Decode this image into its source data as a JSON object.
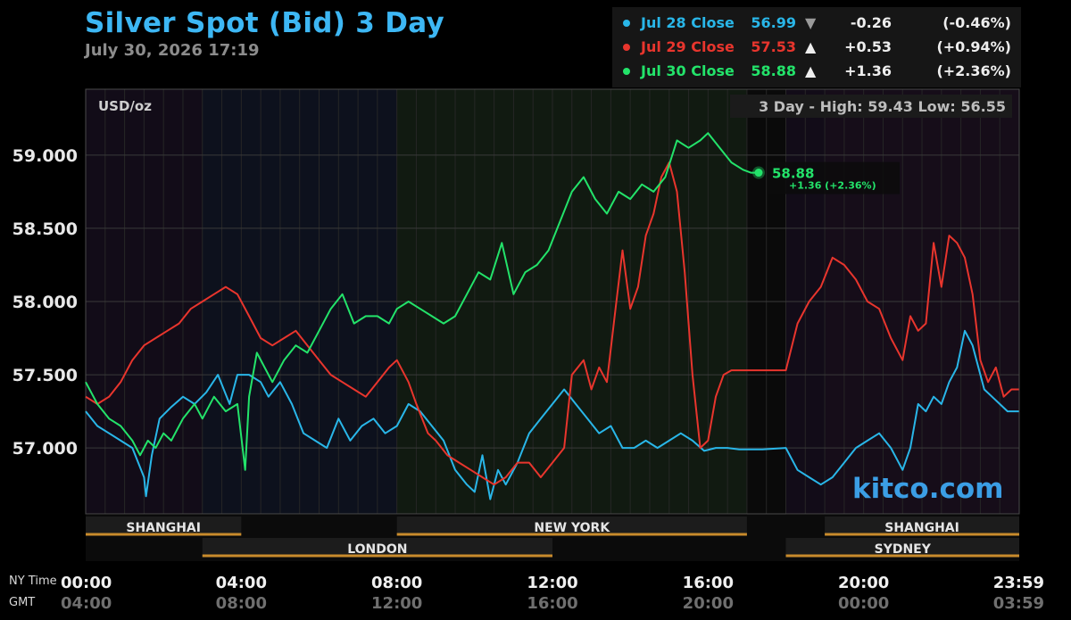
{
  "title": "Silver Spot (Bid) 3 Day",
  "subtitle": "July 30, 2026 17:19",
  "watermark": "kitco.com",
  "legend": [
    {
      "name": "Jul 28 Close",
      "value": "56.99",
      "arrow": "▼",
      "change": "-0.26",
      "pct": "(-0.46%)",
      "color": "#29b6e8"
    },
    {
      "name": "Jul 29 Close",
      "value": "57.53",
      "arrow": "▲",
      "change": "+0.53",
      "pct": "(+0.94%)",
      "color": "#e8352d"
    },
    {
      "name": "Jul 30 Close",
      "value": "58.88",
      "arrow": "▲",
      "change": "+1.36",
      "pct": "(+2.36%)",
      "color": "#23e36a"
    }
  ],
  "chart_data": {
    "type": "line",
    "unit_label": "USD/oz",
    "range_label": "3 Day - High: 59.43  Low: 56.55",
    "ylim": [
      56.55,
      59.45
    ],
    "yticks": [
      57.0,
      57.5,
      58.0,
      58.5,
      59.0
    ],
    "ytick_labels": [
      "57.000",
      "57.500",
      "58.000",
      "58.500",
      "59.000"
    ],
    "xlim": [
      0,
      24
    ],
    "xticks": [
      0,
      4,
      8,
      12,
      16,
      20,
      24
    ],
    "xtick_labels_ny": [
      "00:00",
      "04:00",
      "08:00",
      "12:00",
      "16:00",
      "20:00",
      "23:59"
    ],
    "xtick_labels_gmt": [
      "04:00",
      "08:00",
      "12:00",
      "16:00",
      "20:00",
      "00:00",
      "03:59"
    ],
    "xrow_label_ny": "NY Time",
    "xrow_label_gmt": "GMT",
    "current_label": "58.88",
    "current_change_label": "+1.36 (+2.36%)",
    "current_point": {
      "x": 17.3,
      "y": 58.88
    },
    "sessions": [
      {
        "name": "SHANGHAI",
        "start": 0,
        "end": 4
      },
      {
        "name": "LONDON",
        "start": 3,
        "end": 12
      },
      {
        "name": "NEW YORK",
        "start": 8,
        "end": 17
      },
      {
        "name": "SHANGHAI",
        "start": 19,
        "end": 24
      },
      {
        "name": "SYDNEY",
        "start": 18,
        "end": 24
      }
    ],
    "closed_period": [
      17,
      18
    ],
    "series": [
      {
        "name": "Jul 28 Close",
        "color": "#29b6e8",
        "x": [
          0,
          0.3,
          0.6,
          0.9,
          1.2,
          1.5,
          1.55,
          1.7,
          1.9,
          2.2,
          2.5,
          2.8,
          3.1,
          3.4,
          3.7,
          3.9,
          4.2,
          4.5,
          4.7,
          5.0,
          5.3,
          5.6,
          5.9,
          6.2,
          6.5,
          6.8,
          7.1,
          7.4,
          7.7,
          8.0,
          8.3,
          8.6,
          8.9,
          9.2,
          9.5,
          9.8,
          10.0,
          10.2,
          10.4,
          10.6,
          10.8,
          11.1,
          11.4,
          11.7,
          12.0,
          12.3,
          12.6,
          12.9,
          13.2,
          13.5,
          13.8,
          14.1,
          14.4,
          14.7,
          15.0,
          15.3,
          15.6,
          15.9,
          16.2,
          16.5,
          16.8,
          17.0,
          17.4,
          18.0,
          18.3,
          18.6,
          18.9,
          19.2,
          19.5,
          19.8,
          20.1,
          20.4,
          20.7,
          21.0,
          21.2,
          21.4,
          21.6,
          21.8,
          22.0,
          22.2,
          22.4,
          22.6,
          22.8,
          22.9,
          23.1,
          23.3,
          23.5,
          23.7,
          23.99
        ],
        "y": [
          57.25,
          57.15,
          57.1,
          57.05,
          57.0,
          56.8,
          56.67,
          56.95,
          57.2,
          57.28,
          57.35,
          57.3,
          57.38,
          57.5,
          57.3,
          57.5,
          57.5,
          57.45,
          57.35,
          57.45,
          57.3,
          57.1,
          57.05,
          57.0,
          57.2,
          57.05,
          57.15,
          57.2,
          57.1,
          57.15,
          57.3,
          57.25,
          57.15,
          57.05,
          56.85,
          56.75,
          56.7,
          56.95,
          56.65,
          56.85,
          56.75,
          56.9,
          57.1,
          57.2,
          57.3,
          57.4,
          57.3,
          57.2,
          57.1,
          57.15,
          57.0,
          57.0,
          57.05,
          57.0,
          57.05,
          57.1,
          57.05,
          56.98,
          57.0,
          57.0,
          56.99,
          56.99,
          56.99,
          57.0,
          56.85,
          56.8,
          56.75,
          56.8,
          56.9,
          57.0,
          57.05,
          57.1,
          57.0,
          56.85,
          57.0,
          57.3,
          57.25,
          57.35,
          57.3,
          57.45,
          57.55,
          57.8,
          57.7,
          57.6,
          57.4,
          57.35,
          57.3,
          57.25,
          57.25
        ]
      },
      {
        "name": "Jul 29 Close",
        "color": "#e8352d",
        "x": [
          0,
          0.3,
          0.6,
          0.9,
          1.2,
          1.5,
          1.8,
          2.1,
          2.4,
          2.7,
          3.0,
          3.3,
          3.6,
          3.9,
          4.2,
          4.5,
          4.8,
          5.1,
          5.4,
          5.7,
          6.0,
          6.3,
          6.6,
          6.9,
          7.2,
          7.5,
          7.8,
          8.0,
          8.3,
          8.5,
          8.8,
          9.0,
          9.3,
          9.6,
          9.9,
          10.2,
          10.5,
          10.8,
          11.1,
          11.4,
          11.7,
          12.0,
          12.3,
          12.5,
          12.8,
          13.0,
          13.2,
          13.4,
          13.6,
          13.8,
          14.0,
          14.2,
          14.4,
          14.6,
          14.8,
          15.0,
          15.2,
          15.4,
          15.6,
          15.8,
          16.0,
          16.2,
          16.4,
          16.6,
          16.8,
          17.0,
          17.4,
          18.0,
          18.3,
          18.6,
          18.9,
          19.2,
          19.5,
          19.8,
          20.1,
          20.4,
          20.7,
          21.0,
          21.2,
          21.4,
          21.6,
          21.8,
          22.0,
          22.2,
          22.4,
          22.6,
          22.8,
          23.0,
          23.2,
          23.4,
          23.6,
          23.8,
          23.99
        ],
        "y": [
          57.35,
          57.3,
          57.35,
          57.45,
          57.6,
          57.7,
          57.75,
          57.8,
          57.85,
          57.95,
          58.0,
          58.05,
          58.1,
          58.05,
          57.9,
          57.75,
          57.7,
          57.75,
          57.8,
          57.7,
          57.6,
          57.5,
          57.45,
          57.4,
          57.35,
          57.45,
          57.55,
          57.6,
          57.45,
          57.3,
          57.1,
          57.05,
          56.95,
          56.9,
          56.85,
          56.8,
          56.75,
          56.8,
          56.9,
          56.9,
          56.8,
          56.9,
          57.0,
          57.5,
          57.6,
          57.4,
          57.55,
          57.45,
          57.9,
          58.35,
          57.95,
          58.1,
          58.45,
          58.6,
          58.85,
          58.95,
          58.75,
          58.2,
          57.5,
          57.0,
          57.05,
          57.35,
          57.5,
          57.53,
          57.53,
          57.53,
          57.53,
          57.53,
          57.85,
          58.0,
          58.1,
          58.3,
          58.25,
          58.15,
          58.0,
          57.95,
          57.75,
          57.6,
          57.9,
          57.8,
          57.85,
          58.4,
          58.1,
          58.45,
          58.4,
          58.3,
          58.05,
          57.6,
          57.45,
          57.55,
          57.35,
          57.4,
          57.4
        ]
      },
      {
        "name": "Jul 30 Close",
        "color": "#23e36a",
        "x": [
          0,
          0.3,
          0.6,
          0.9,
          1.2,
          1.4,
          1.6,
          1.8,
          2.0,
          2.2,
          2.5,
          2.8,
          3.0,
          3.3,
          3.6,
          3.9,
          4.1,
          4.2,
          4.4,
          4.6,
          4.8,
          5.1,
          5.4,
          5.7,
          6.0,
          6.3,
          6.6,
          6.9,
          7.2,
          7.5,
          7.8,
          8.0,
          8.3,
          8.6,
          8.9,
          9.2,
          9.5,
          9.8,
          10.1,
          10.4,
          10.7,
          11.0,
          11.3,
          11.6,
          11.9,
          12.2,
          12.5,
          12.8,
          13.1,
          13.4,
          13.7,
          14.0,
          14.3,
          14.6,
          14.9,
          15.2,
          15.5,
          15.8,
          16.0,
          16.3,
          16.6,
          16.9,
          17.1,
          17.3
        ],
        "y": [
          57.45,
          57.3,
          57.2,
          57.15,
          57.05,
          56.95,
          57.05,
          57.0,
          57.1,
          57.05,
          57.2,
          57.3,
          57.2,
          57.35,
          57.25,
          57.3,
          56.85,
          57.35,
          57.65,
          57.55,
          57.45,
          57.6,
          57.7,
          57.65,
          57.8,
          57.95,
          58.05,
          57.85,
          57.9,
          57.9,
          57.85,
          57.95,
          58.0,
          57.95,
          57.9,
          57.85,
          57.9,
          58.05,
          58.2,
          58.15,
          58.4,
          58.05,
          58.2,
          58.25,
          58.35,
          58.55,
          58.75,
          58.85,
          58.7,
          58.6,
          58.75,
          58.7,
          58.8,
          58.75,
          58.85,
          59.1,
          59.05,
          59.1,
          59.15,
          59.05,
          58.95,
          58.9,
          58.88,
          58.88
        ]
      }
    ]
  }
}
